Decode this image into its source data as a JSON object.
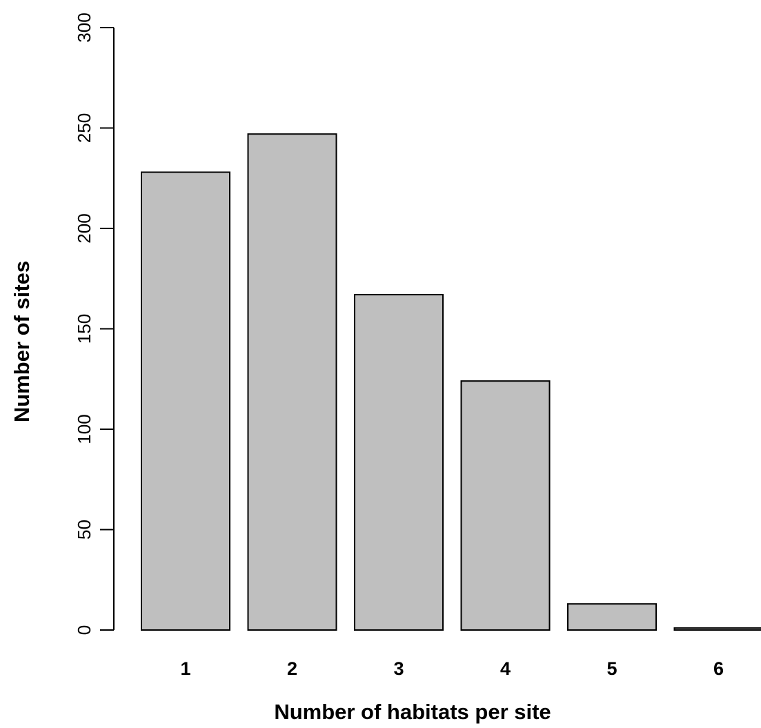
{
  "chart_data": {
    "type": "bar",
    "categories": [
      "1",
      "2",
      "3",
      "4",
      "5",
      "6"
    ],
    "values": [
      228,
      247,
      167,
      124,
      13,
      1
    ],
    "title": "",
    "xlabel": "Number of habitats per site",
    "ylabel": "Number of sites",
    "ylim": [
      0,
      300
    ],
    "yticks": [
      0,
      50,
      100,
      150,
      200,
      250,
      300
    ],
    "grid": false,
    "legend": "none",
    "colors": {
      "bar_fill": "#bfbfbf",
      "bar_stroke": "#000000",
      "axis": "#000000"
    }
  }
}
